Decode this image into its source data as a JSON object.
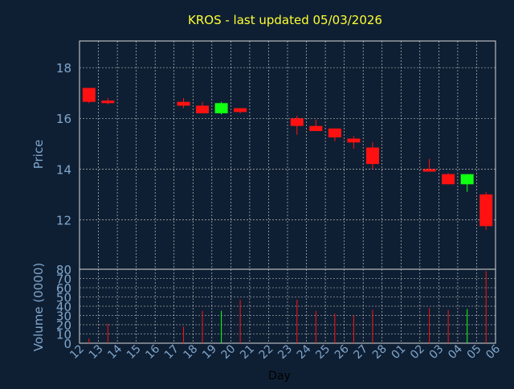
{
  "title": "KROS - last updated 05/03/2026",
  "chart_data": [
    {
      "type": "candlestick",
      "ylabel": "Price",
      "ylim": [
        10.05,
        19.05
      ],
      "yticks": [
        12,
        14,
        16,
        18
      ],
      "grid": true,
      "candles": [
        {
          "day": 0,
          "open": 17.2,
          "high": 17.2,
          "low": 16.6,
          "close": 16.65
        },
        {
          "day": 1,
          "open": 16.7,
          "high": 16.8,
          "low": 16.55,
          "close": 16.6
        },
        {
          "day": 5,
          "open": 16.65,
          "high": 16.8,
          "low": 16.4,
          "close": 16.5
        },
        {
          "day": 6,
          "open": 16.5,
          "high": 16.65,
          "low": 16.2,
          "close": 16.2
        },
        {
          "day": 7,
          "open": 16.2,
          "high": 16.65,
          "low": 16.15,
          "close": 16.6
        },
        {
          "day": 8,
          "open": 16.4,
          "high": 16.4,
          "low": 16.2,
          "close": 16.25
        },
        {
          "day": 11,
          "open": 16.0,
          "high": 16.1,
          "low": 15.35,
          "close": 15.7
        },
        {
          "day": 12,
          "open": 15.7,
          "high": 15.95,
          "low": 15.5,
          "close": 15.5
        },
        {
          "day": 13,
          "open": 15.6,
          "high": 15.6,
          "low": 15.1,
          "close": 15.25
        },
        {
          "day": 14,
          "open": 15.2,
          "high": 15.3,
          "low": 14.8,
          "close": 15.05
        },
        {
          "day": 15,
          "open": 14.85,
          "high": 15.05,
          "low": 14.0,
          "close": 14.2
        },
        {
          "day": 18,
          "open": 14.0,
          "high": 14.4,
          "low": 13.9,
          "close": 13.9
        },
        {
          "day": 19,
          "open": 13.8,
          "high": 13.85,
          "low": 13.4,
          "close": 13.4
        },
        {
          "day": 20,
          "open": 13.4,
          "high": 13.8,
          "low": 13.1,
          "close": 13.8
        },
        {
          "day": 21,
          "open": 13.0,
          "high": 13.1,
          "low": 11.6,
          "close": 11.75
        }
      ]
    },
    {
      "type": "bar",
      "ylabel": "Volume (0000)",
      "xlabel": "Day",
      "ylim": [
        0,
        80
      ],
      "yticks": [
        0,
        10,
        20,
        30,
        40,
        50,
        60,
        70,
        80
      ],
      "grid": true,
      "categories": [
        "12",
        "13",
        "14",
        "15",
        "16",
        "17",
        "18",
        "19",
        "20",
        "21",
        "22",
        "23",
        "24",
        "25",
        "26",
        "27",
        "28",
        "01",
        "02",
        "03",
        "04",
        "05",
        "06"
      ],
      "bars": [
        {
          "day": 0,
          "value": 5,
          "color": "red"
        },
        {
          "day": 1,
          "value": 21,
          "color": "red"
        },
        {
          "day": 5,
          "value": 18,
          "color": "red"
        },
        {
          "day": 6,
          "value": 35,
          "color": "red"
        },
        {
          "day": 7,
          "value": 35,
          "color": "green"
        },
        {
          "day": 8,
          "value": 47,
          "color": "red"
        },
        {
          "day": 11,
          "value": 47,
          "color": "red"
        },
        {
          "day": 12,
          "value": 35,
          "color": "red"
        },
        {
          "day": 13,
          "value": 32,
          "color": "red"
        },
        {
          "day": 14,
          "value": 30,
          "color": "red"
        },
        {
          "day": 15,
          "value": 36,
          "color": "red"
        },
        {
          "day": 18,
          "value": 38,
          "color": "red"
        },
        {
          "day": 19,
          "value": 36,
          "color": "red"
        },
        {
          "day": 20,
          "value": 37,
          "color": "green"
        },
        {
          "day": 21,
          "value": 78,
          "color": "red"
        }
      ]
    }
  ],
  "colors": {
    "background": "#0f1f33",
    "axis_text": "#7fa6cc",
    "title": "#ffff33",
    "grid": "#d9d9d9",
    "up": "#11ff11",
    "down": "#ff1111"
  }
}
